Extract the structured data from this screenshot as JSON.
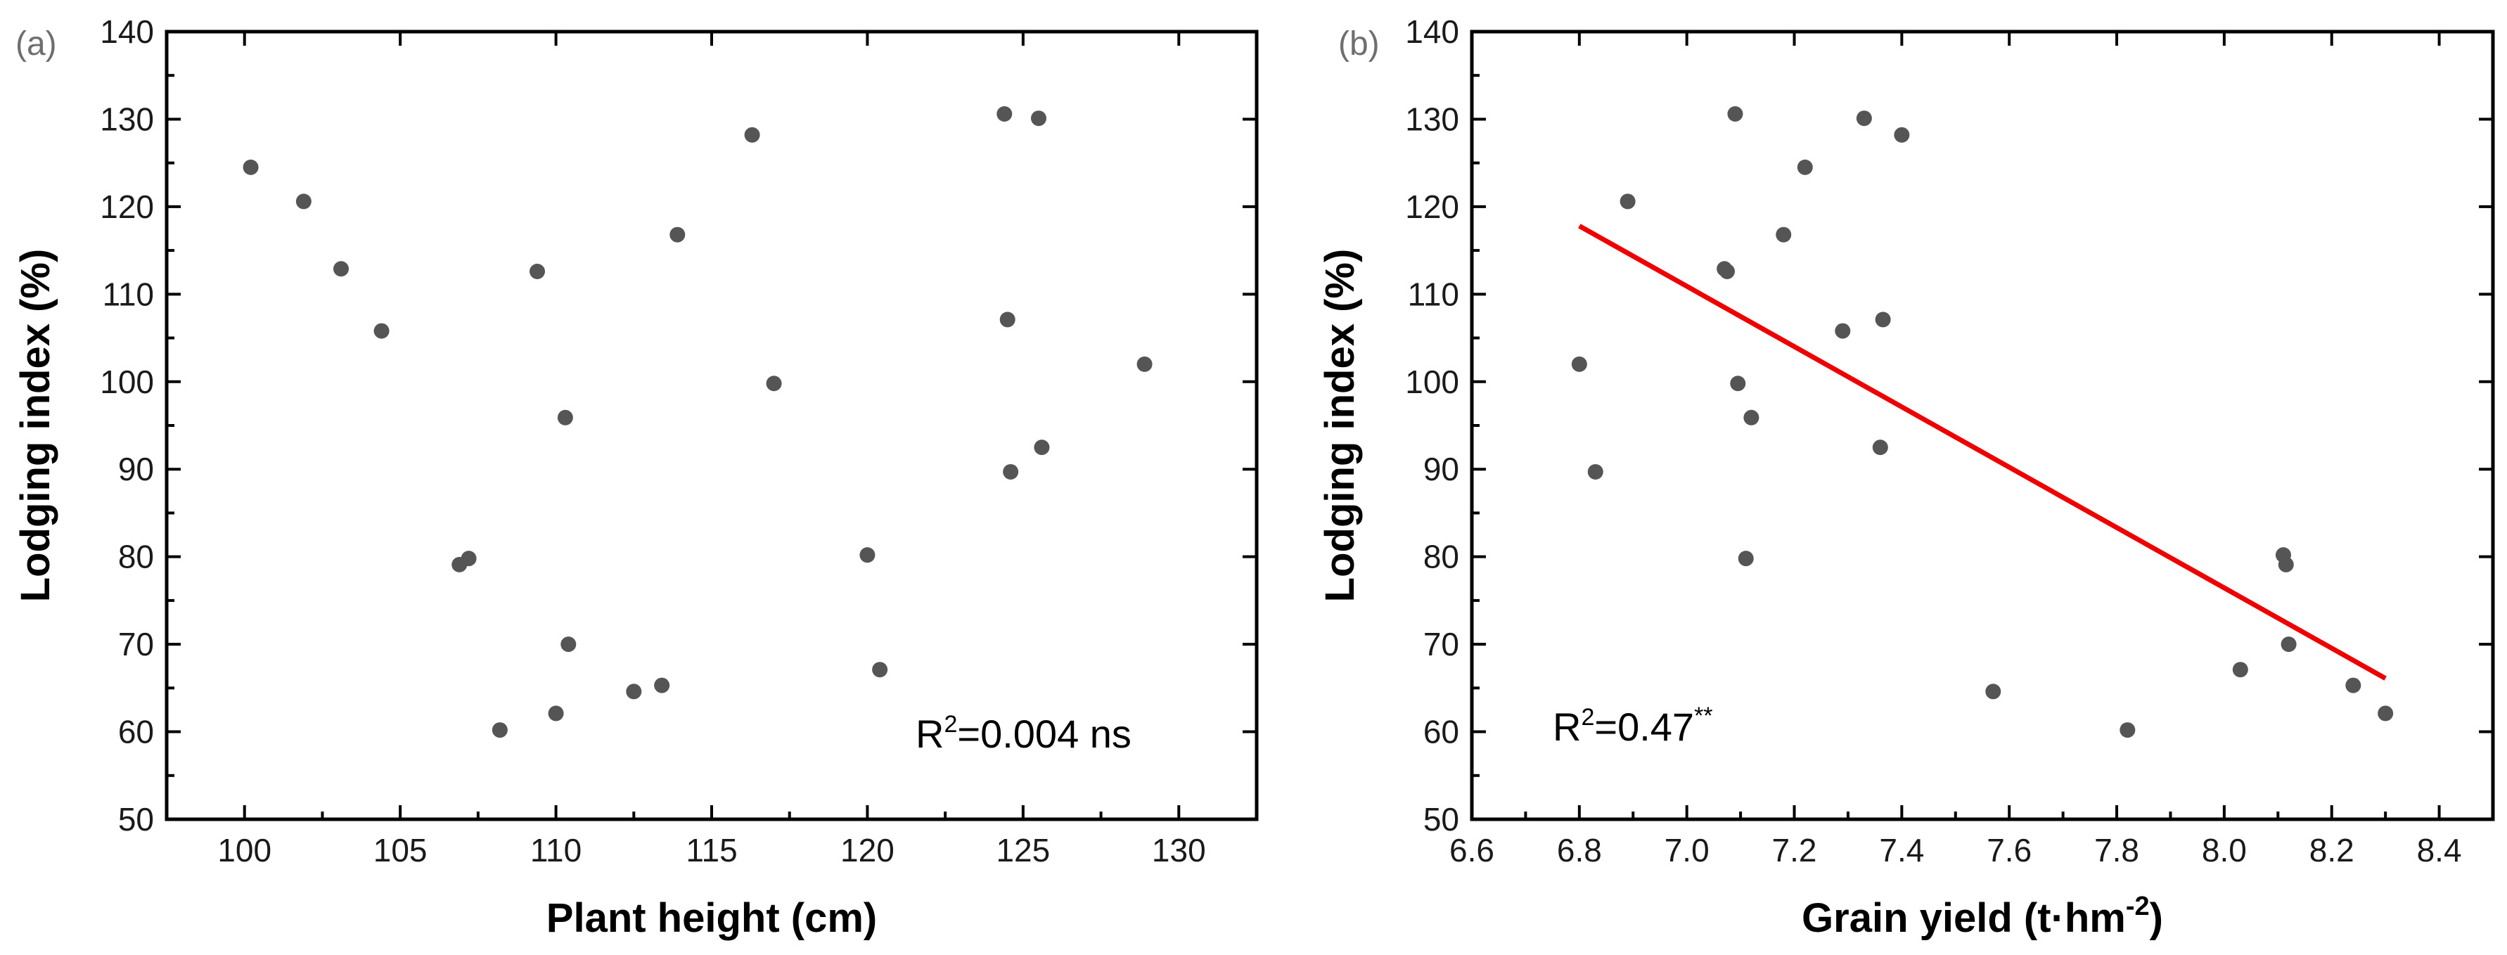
{
  "colors": {
    "point": "#555555",
    "fit_line": "#ee0000",
    "axis": "#000000"
  },
  "chart_data": [
    {
      "type": "scatter",
      "panel_label": "(a)",
      "xlabel": "Plant height (cm)",
      "ylabel": "Lodging index (%)",
      "xlim": [
        97.5,
        132.5
      ],
      "ylim": [
        50,
        140
      ],
      "xticks": [
        "100",
        "105",
        "110",
        "115",
        "120",
        "125",
        "130"
      ],
      "yticks": [
        "50",
        "60",
        "70",
        "80",
        "90",
        "100",
        "110",
        "120",
        "130",
        "140"
      ],
      "x": [
        100.2,
        101.9,
        103.1,
        104.4,
        106.9,
        107.2,
        108.2,
        109.4,
        110.0,
        110.3,
        110.4,
        112.5,
        113.4,
        113.9,
        116.3,
        117.0,
        120.0,
        120.4,
        124.4,
        124.5,
        124.6,
        125.5,
        125.6,
        128.9
      ],
      "y": [
        124.5,
        120.6,
        112.9,
        105.8,
        79.1,
        79.8,
        60.2,
        112.6,
        62.1,
        95.9,
        70.0,
        64.6,
        65.3,
        116.8,
        128.2,
        99.8,
        80.2,
        67.1,
        130.6,
        107.1,
        89.7,
        130.1,
        92.5,
        102.0
      ],
      "annotation": {
        "base": "R",
        "sup": "2",
        "rest": "=0.004 ns"
      }
    },
    {
      "type": "scatter",
      "panel_label": "(b)",
      "xlabel_main": "Grain yield (t·hm",
      "xlabel_sup": "-2",
      "xlabel_end": ")",
      "ylabel": "Lodging index (%)",
      "xlim": [
        6.6,
        8.5
      ],
      "ylim": [
        50,
        140
      ],
      "xticks": [
        "6.6",
        "6.8",
        "7.0",
        "7.2",
        "7.4",
        "7.6",
        "7.8",
        "8.0",
        "8.2",
        "8.4"
      ],
      "yticks": [
        "50",
        "60",
        "70",
        "80",
        "90",
        "100",
        "110",
        "120",
        "130",
        "140"
      ],
      "x": [
        6.8,
        6.83,
        6.89,
        7.07,
        7.075,
        7.09,
        7.095,
        7.11,
        7.12,
        7.18,
        7.22,
        7.29,
        7.33,
        7.36,
        7.365,
        7.4,
        7.57,
        7.82,
        8.03,
        8.11,
        8.115,
        8.12,
        8.24,
        8.3
      ],
      "y": [
        102.0,
        89.7,
        120.6,
        112.9,
        112.6,
        130.6,
        99.8,
        79.8,
        95.9,
        116.8,
        124.5,
        105.8,
        130.1,
        92.5,
        107.1,
        128.2,
        64.6,
        60.2,
        67.1,
        80.2,
        79.1,
        70.0,
        65.3,
        62.1
      ],
      "fit_line": {
        "x": [
          6.8,
          8.3
        ],
        "y": [
          117.8,
          66.1
        ]
      },
      "annotation": {
        "base": "R",
        "sup": "2",
        "rest": "=0.47",
        "stars": "**"
      }
    }
  ]
}
